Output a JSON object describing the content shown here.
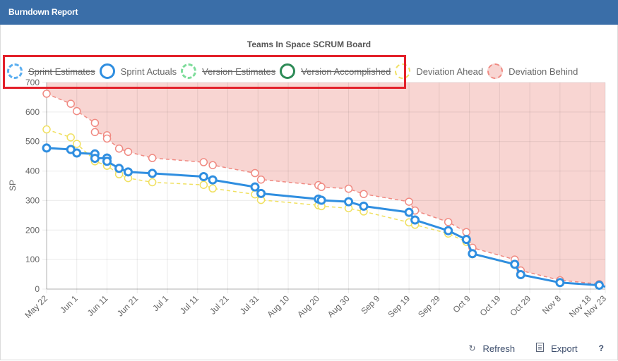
{
  "header": {
    "title": "Burndown Report"
  },
  "footer": {
    "refresh_label": "Refresh",
    "refresh_icon": "refresh-icon",
    "export_label": "Export",
    "export_icon": "document-icon",
    "help_label": "?"
  },
  "colors": {
    "header_bg": "#3a6ea8",
    "sprint_estimates": "#5aaef0",
    "sprint_actuals": "#2f8ee0",
    "version_estimates": "#7ddc9a",
    "version_accomplished": "#2e8b57",
    "deviation_ahead": "#f0e060",
    "deviation_behind": "#f08a82",
    "deviation_behind_fill": "#f8d5d2",
    "highlight": "#e3202a"
  },
  "chart_data": {
    "type": "line",
    "title": "Teams In Space SCRUM Board",
    "xlabel": "",
    "ylabel": "SP",
    "ylim": [
      0,
      700
    ],
    "yticks": [
      0,
      100,
      200,
      300,
      400,
      500,
      600,
      700
    ],
    "grid": true,
    "legend_position": "top",
    "x_ticks": [
      "May 22",
      "Jun 1",
      "Jun 11",
      "Jun 21",
      "Jul 1",
      "Jul 11",
      "Jul 21",
      "Jul 31",
      "Aug 10",
      "Aug 20",
      "Aug 30",
      "Sep 9",
      "Sep 19",
      "Sep 29",
      "Oct 9",
      "Oct 19",
      "Oct 29",
      "Nov 8",
      "Nov 18",
      "Nov 23"
    ],
    "x_tick_days": [
      0,
      10,
      20,
      30,
      40,
      50,
      60,
      70,
      80,
      90,
      100,
      110,
      120,
      130,
      140,
      150,
      160,
      170,
      180,
      185
    ],
    "legend": [
      {
        "name": "Sprint Estimates",
        "hidden": true,
        "style": "dashed"
      },
      {
        "name": "Sprint Actuals",
        "hidden": false,
        "style": "solid"
      },
      {
        "name": "Version Estimates",
        "hidden": true,
        "style": "dashed"
      },
      {
        "name": "Version Accomplished",
        "hidden": true,
        "style": "solid"
      },
      {
        "name": "Deviation Ahead",
        "hidden": false,
        "style": "dashed"
      },
      {
        "name": "Deviation Behind",
        "hidden": false,
        "style": "dashed-fill"
      }
    ],
    "series": [
      {
        "name": "Deviation Behind",
        "x_days": [
          0,
          8,
          10,
          16,
          16,
          20,
          20,
          24,
          27,
          35,
          52,
          55,
          69,
          71,
          90,
          91,
          100,
          105,
          120,
          122,
          133,
          139,
          141,
          155,
          157,
          170,
          183,
          185
        ],
        "values": [
          662,
          628,
          603,
          563,
          532,
          521,
          510,
          476,
          465,
          444,
          430,
          420,
          393,
          371,
          352,
          346,
          340,
          322,
          296,
          266,
          227,
          193,
          140,
          100,
          63,
          30,
          17,
          10
        ]
      },
      {
        "name": "Sprint Actuals",
        "x_days": [
          0,
          8,
          10,
          16,
          16,
          20,
          20,
          24,
          27,
          35,
          52,
          55,
          69,
          71,
          90,
          91,
          100,
          105,
          120,
          122,
          133,
          139,
          141,
          155,
          157,
          170,
          183,
          185
        ],
        "values": [
          478,
          473,
          461,
          458,
          443,
          444,
          433,
          409,
          397,
          392,
          381,
          370,
          346,
          324,
          305,
          301,
          296,
          281,
          260,
          234,
          198,
          168,
          120,
          84,
          49,
          22,
          13,
          8
        ]
      },
      {
        "name": "Deviation Ahead",
        "x_days": [
          0,
          8,
          10,
          16,
          16,
          20,
          20,
          24,
          27,
          35,
          52,
          55,
          69,
          71,
          90,
          91,
          100,
          105,
          120,
          122,
          133,
          139,
          141,
          155,
          157,
          170,
          183,
          185
        ],
        "values": [
          541,
          514,
          492,
          436,
          433,
          418,
          418,
          389,
          376,
          362,
          353,
          341,
          321,
          302,
          284,
          281,
          274,
          263,
          226,
          218,
          188,
          160,
          118,
          82,
          48,
          22,
          12,
          8
        ]
      }
    ]
  }
}
